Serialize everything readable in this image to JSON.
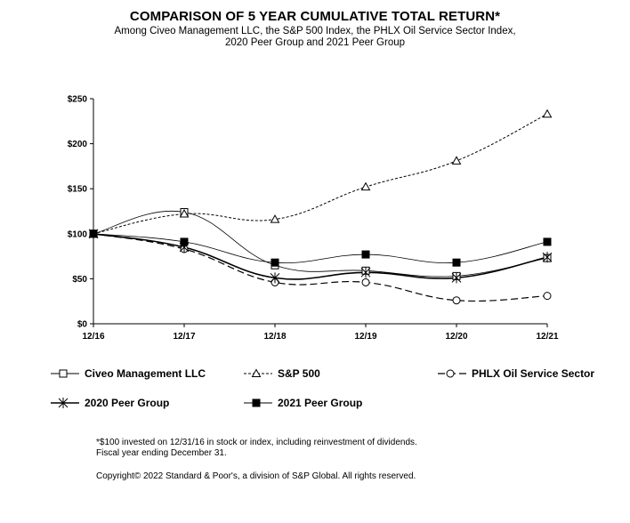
{
  "page": {
    "title": "COMPARISON OF 5 YEAR CUMULATIVE TOTAL RETURN*",
    "subtitle_line1": "Among Civeo Management LLC, the S&P 500 Index, the PHLX Oil Service Sector Index,",
    "subtitle_line2": "2020 Peer Group and 2021 Peer Group",
    "footnote_line1": "*$100 invested on 12/31/16 in stock or index, including reinvestment of dividends.",
    "footnote_line2": "Fiscal year ending December 31.",
    "copyright": "Copyright© 2022 Standard & Poor's, a division of S&P Global.  All rights reserved."
  },
  "chart_data": {
    "type": "line",
    "title": "COMPARISON OF 5 YEAR CUMULATIVE TOTAL RETURN*",
    "xlabel": "",
    "ylabel": "",
    "categories": [
      "12/16",
      "12/17",
      "12/18",
      "12/19",
      "12/20",
      "12/21"
    ],
    "ylim": [
      0,
      250
    ],
    "yticks": [
      0,
      50,
      100,
      150,
      200,
      250
    ],
    "ytick_labels": [
      "$0",
      "$50",
      "$100",
      "$150",
      "$200",
      "$250"
    ],
    "grid": false,
    "legend_position": "bottom",
    "series": [
      {
        "name": "Civeo Management LLC",
        "values": [
          100,
          124,
          65,
          59,
          53,
          73
        ],
        "marker": "open-square",
        "dash": "solid",
        "color": "#000000",
        "stroke_width": 0.8
      },
      {
        "name": "S&P 500",
        "values": [
          100,
          122,
          116,
          152,
          181,
          233
        ],
        "marker": "open-triangle",
        "dash": "dotted",
        "color": "#000000",
        "stroke_width": 1
      },
      {
        "name": "PHLX Oil Service Sector",
        "values": [
          100,
          83,
          46,
          46,
          26,
          31
        ],
        "marker": "open-circle",
        "dash": "dashed",
        "color": "#000000",
        "stroke_width": 1.2
      },
      {
        "name": "2020 Peer Group",
        "values": [
          100,
          85,
          51,
          57,
          51,
          74
        ],
        "marker": "asterisk",
        "dash": "solid",
        "color": "#000000",
        "stroke_width": 1.6
      },
      {
        "name": "2021 Peer Group",
        "values": [
          100,
          91,
          68,
          77,
          68,
          91
        ],
        "marker": "filled-square",
        "dash": "solid",
        "color": "#000000",
        "stroke_width": 0.8
      }
    ]
  }
}
